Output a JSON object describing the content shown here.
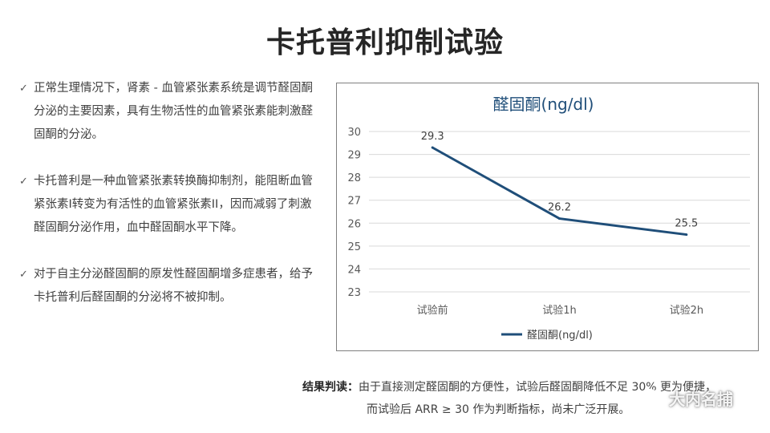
{
  "title": "卡托普利抑制试验",
  "bullets": [
    {
      "icon": "check-icon",
      "text": "正常生理情况下，肾素 - 血管紧张素系统是调节醛固酮分泌的主要因素，具有生物活性的血管紧张素能刺激醛固酮的分泌。"
    },
    {
      "icon": "check-icon",
      "text": "卡托普利是一种血管紧张素转换酶抑制剂，能阻断血管紧张素I转变为有活性的血管紧张素II，因而减弱了刺激醛固酮分泌作用，血中醛固酮水平下降。"
    },
    {
      "icon": "check-icon",
      "text": "对于自主分泌醛固酮的原发性醛固酮增多症患者，给予卡托普利后醛固酮的分泌将不被抑制。"
    }
  ],
  "conclusion": {
    "label": "结果判读：",
    "line1": "由于直接测定醛固酮的方便性，试验后醛固酮降低不足 30% 更为便捷，",
    "line2": "而试验后 ARR ≥ 30 作为判断指标，尚未广泛开展。"
  },
  "watermark": {
    "icon": "wechat-icon",
    "text": "大内名捕"
  },
  "chart_data": {
    "type": "line",
    "title": "醛固酮(ng/dl)",
    "categories": [
      "试验前",
      "试验1h",
      "试验2h"
    ],
    "series": [
      {
        "name": "醛固酮(ng/dl)",
        "values": [
          29.3,
          26.2,
          25.5
        ],
        "color": "#1f4e79"
      }
    ],
    "ylim": [
      23,
      30
    ],
    "yticks": [
      30,
      29,
      28,
      27,
      26,
      25,
      24,
      23
    ],
    "grid": true,
    "legend": "bottom",
    "data_labels": true
  }
}
